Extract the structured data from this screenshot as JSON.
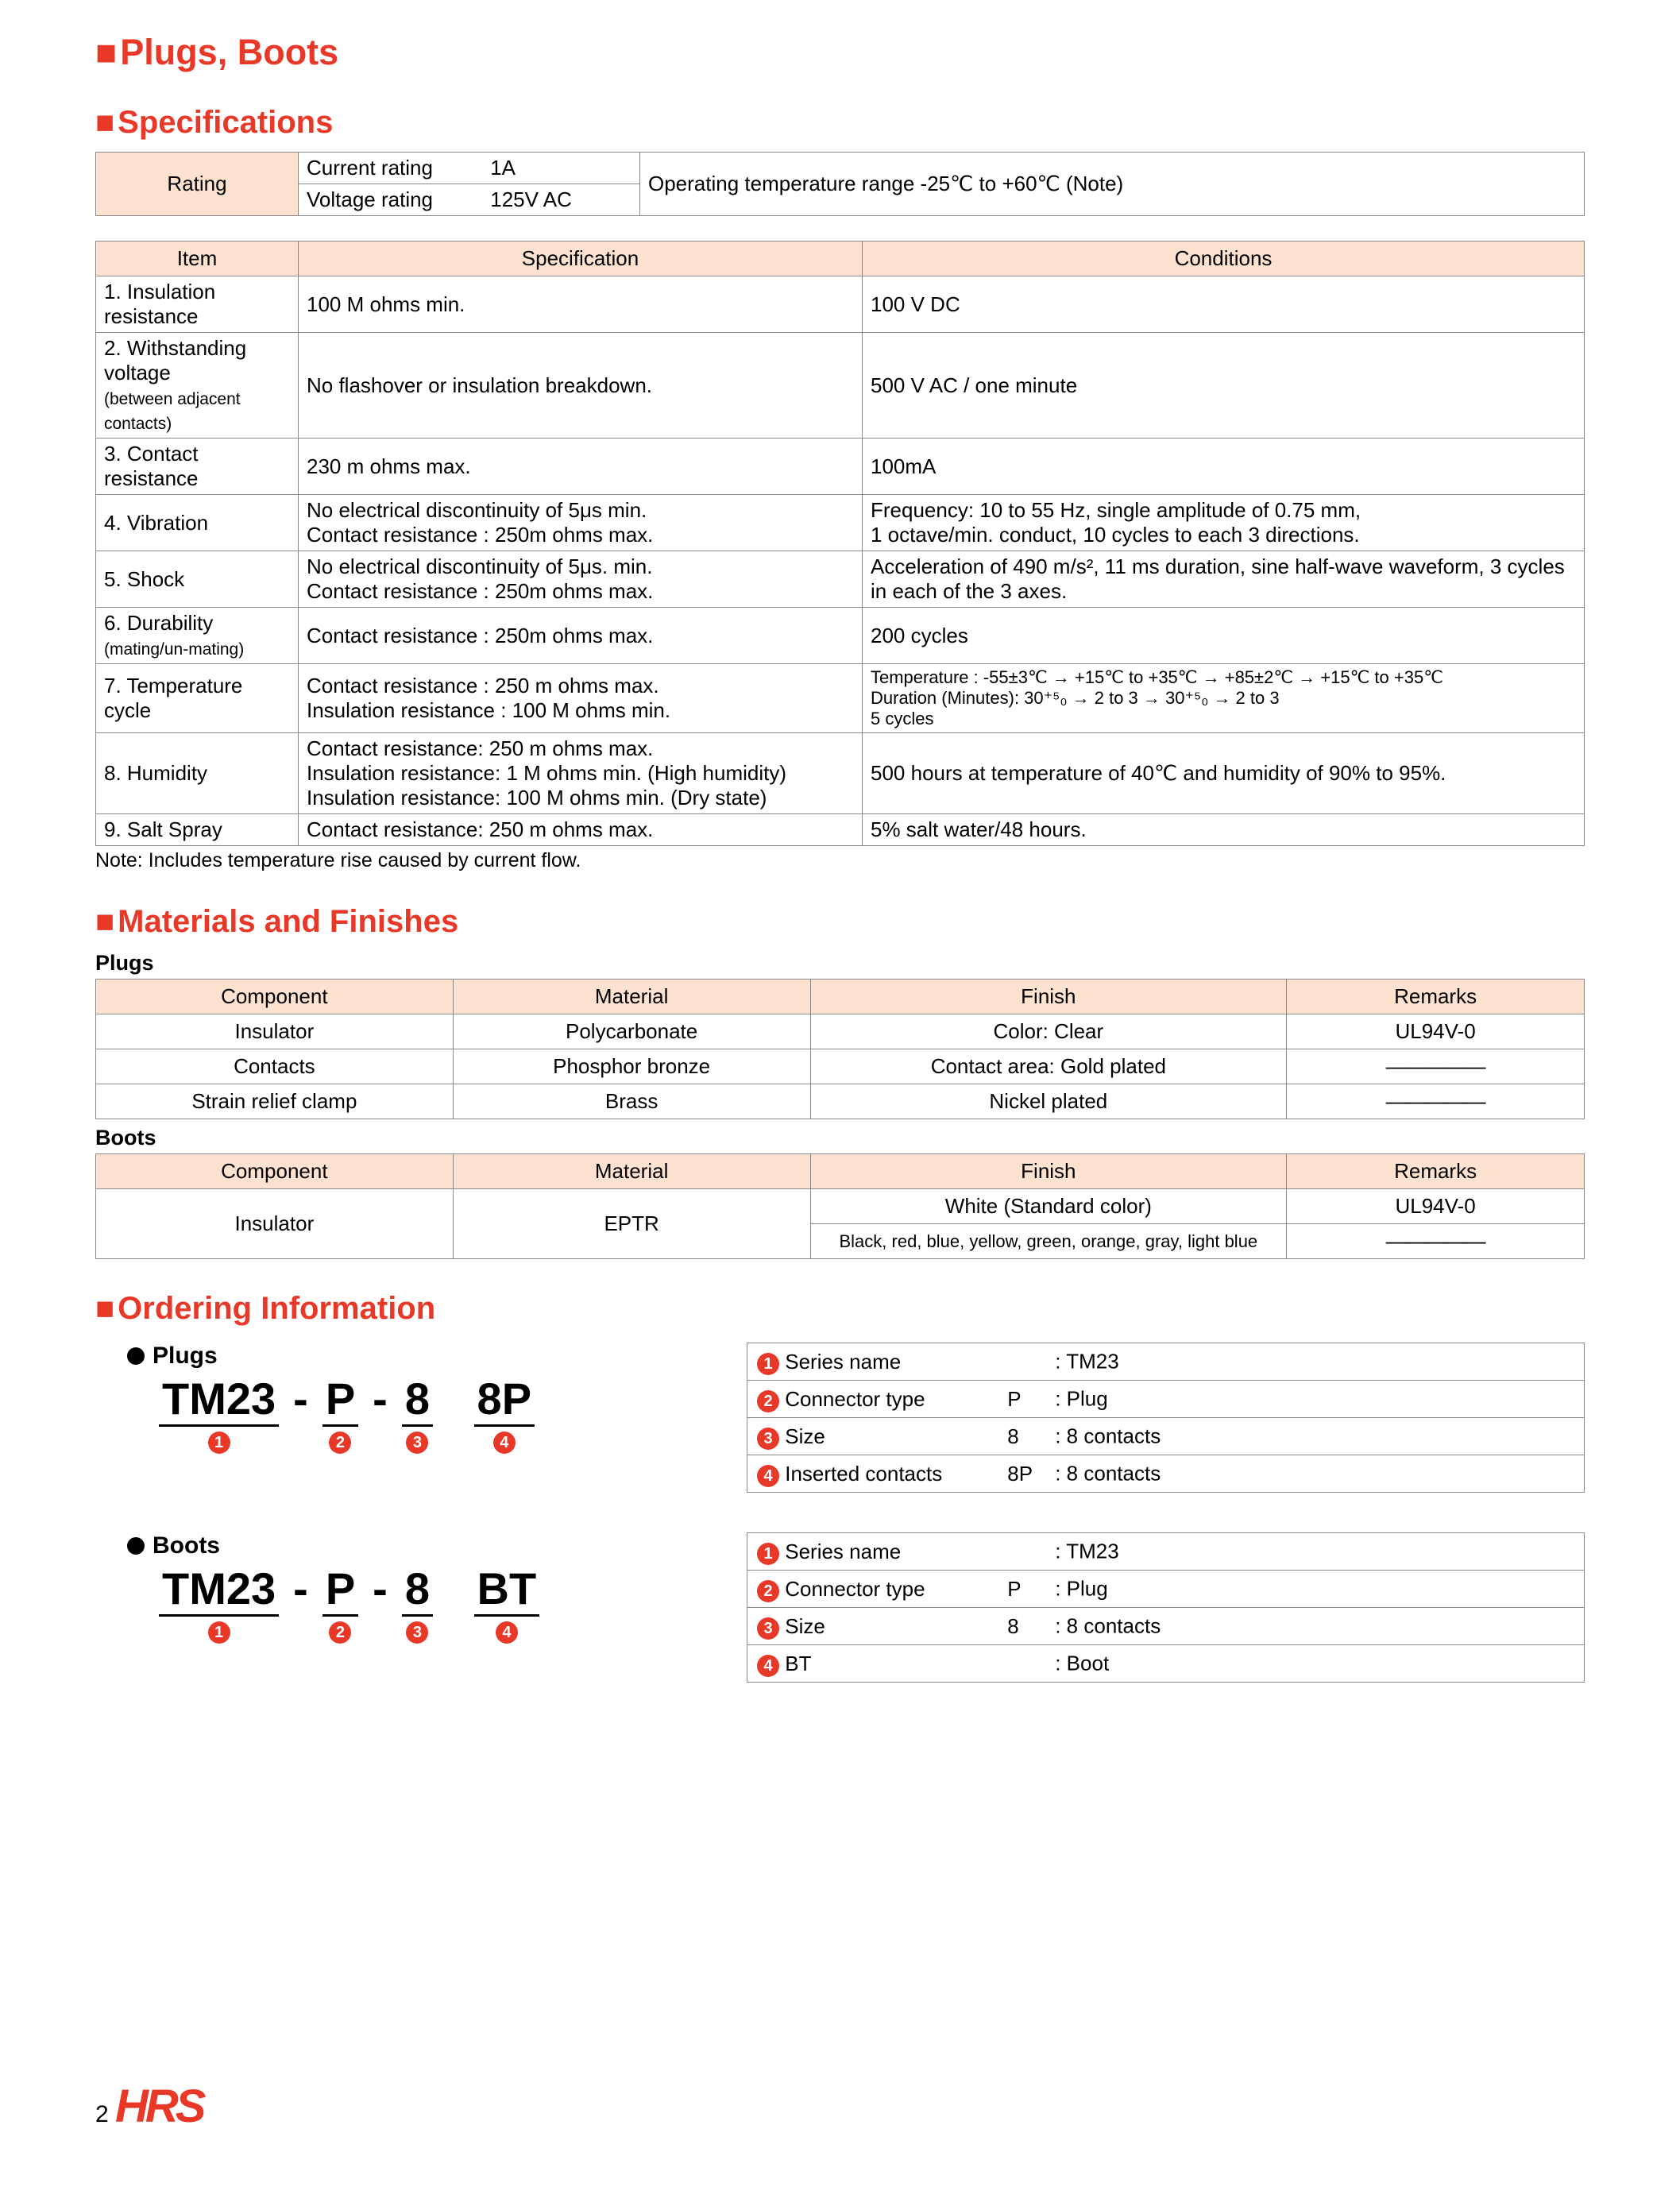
{
  "colors": {
    "accent": "#e83828",
    "header_bg": "#fde2cf",
    "border": "#888888",
    "text": "#000000",
    "bg": "#ffffff"
  },
  "title_main": "Plugs, Boots",
  "title_specs": "Specifications",
  "title_materials": "Materials and Finishes",
  "title_ordering": "Ordering Information",
  "rating": {
    "label": "Rating",
    "current_label": "Current rating",
    "current_value": "1A",
    "voltage_label": "Voltage rating",
    "voltage_value": "125V AC",
    "op_temp": "Operating temperature range -25℃ to +60℃ (Note)"
  },
  "spec_headers": {
    "item": "Item",
    "spec": "Specification",
    "cond": "Conditions"
  },
  "specs": [
    {
      "item": "1. Insulation resistance",
      "spec": "100 M ohms min.",
      "cond": "100 V DC"
    },
    {
      "item": "2. Withstanding voltage",
      "item_sub": "(between adjacent contacts)",
      "spec": "No flashover or insulation breakdown.",
      "cond": "500 V AC / one minute"
    },
    {
      "item": "3. Contact resistance",
      "spec": "230 m ohms max.",
      "cond": "100mA"
    },
    {
      "item": "4. Vibration",
      "spec": "No electrical discontinuity of 5μs min.\nContact resistance      : 250m ohms max.",
      "cond": "Frequency: 10 to 55 Hz, single amplitude of 0.75 mm,\n              1 octave/min. conduct, 10 cycles to each 3 directions."
    },
    {
      "item": "5. Shock",
      "spec": "No electrical discontinuity of 5μs. min.\nContact resistance      : 250m ohms max.",
      "cond": "Acceleration of 490 m/s², 11 ms duration, sine half-wave waveform, 3 cycles in each of the 3 axes."
    },
    {
      "item": "6. Durability",
      "item_sub": "   (mating/un-mating)",
      "spec": "Contact resistance      : 250m ohms max.",
      "cond": "200 cycles"
    },
    {
      "item": "7. Temperature cycle",
      "spec": "Contact resistance      : 250 m ohms max.\nInsulation resistance   : 100 M ohms min.",
      "cond": "Temperature  : -55±3℃ → +15℃ to +35℃ → +85±2℃ → +15℃ to +35℃\nDuration (Minutes): 30⁺⁵₀ → 2 to 3 → 30⁺⁵₀ → 2 to 3\n                                5 cycles"
    },
    {
      "item": "8. Humidity",
      "spec": "Contact resistance: 250 m ohms max.\nInsulation resistance: 1 M ohms min. (High humidity)\nInsulation resistance: 100 M ohms min. (Dry state)",
      "cond": "500 hours at temperature of 40℃ and humidity of 90% to 95%."
    },
    {
      "item": "9. Salt Spray",
      "spec": "Contact resistance: 250 m ohms max.",
      "cond": "5% salt water/48 hours."
    }
  ],
  "spec_note": "Note: Includes temperature rise caused by current flow.",
  "mat_headers": {
    "component": "Component",
    "material": "Material",
    "finish": "Finish",
    "remarks": "Remarks"
  },
  "mat_plugs_label": "Plugs",
  "mat_boots_label": "Boots",
  "mat_plugs": [
    {
      "component": "Insulator",
      "material": "Polycarbonate",
      "finish": "Color: Clear",
      "remarks": "UL94V-0"
    },
    {
      "component": "Contacts",
      "material": "Phosphor bronze",
      "finish": "Contact area: Gold plated",
      "remarks": "―――――"
    },
    {
      "component": "Strain relief clamp",
      "material": "Brass",
      "finish": "Nickel plated",
      "remarks": "―――――"
    }
  ],
  "mat_boots": {
    "component": "Insulator",
    "material": "EPTR",
    "finish1": "White (Standard color)",
    "remarks1": "UL94V-0",
    "finish2": "Black, red, blue, yellow, green, orange, gray, light blue",
    "remarks2": "―――――"
  },
  "ordering_plugs": {
    "label": "Plugs",
    "parts": [
      "TM23",
      "P",
      "8",
      "8P"
    ],
    "legend": [
      {
        "n": "1",
        "name": "Series name",
        "code": "",
        "desc": ": TM23"
      },
      {
        "n": "2",
        "name": "Connector type",
        "code": "P",
        "desc": ": Plug"
      },
      {
        "n": "3",
        "name": "Size",
        "code": "8",
        "desc": ": 8 contacts"
      },
      {
        "n": "4",
        "name": "Inserted contacts",
        "code": "8P",
        "desc": ": 8 contacts"
      }
    ]
  },
  "ordering_boots": {
    "label": "Boots",
    "parts": [
      "TM23",
      "P",
      "8",
      "BT"
    ],
    "legend": [
      {
        "n": "1",
        "name": " Series name",
        "code": "",
        "desc": ": TM23"
      },
      {
        "n": "2",
        "name": "Connector type",
        "code": "P",
        "desc": ": Plug"
      },
      {
        "n": "3",
        "name": "Size",
        "code": "8",
        "desc": ": 8 contacts"
      },
      {
        "n": "4",
        "name": "BT",
        "code": "",
        "desc": ": Boot"
      }
    ]
  },
  "page_number": "2",
  "logo_text": "HRS"
}
